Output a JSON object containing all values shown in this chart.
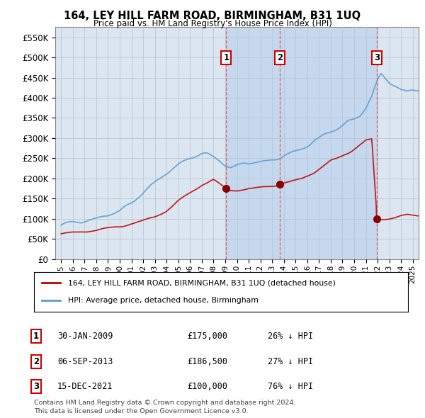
{
  "title": "164, LEY HILL FARM ROAD, BIRMINGHAM, B31 1UQ",
  "subtitle": "Price paid vs. HM Land Registry's House Price Index (HPI)",
  "ylim": [
    0,
    575000
  ],
  "yticks": [
    0,
    50000,
    100000,
    150000,
    200000,
    250000,
    300000,
    350000,
    400000,
    450000,
    500000,
    550000
  ],
  "ytick_labels": [
    "£0",
    "£50K",
    "£100K",
    "£150K",
    "£200K",
    "£250K",
    "£300K",
    "£350K",
    "£400K",
    "£450K",
    "£500K",
    "£550K"
  ],
  "sale_dates_num": [
    2009.08,
    2013.68,
    2021.96
  ],
  "sale_prices": [
    175000,
    186500,
    100000
  ],
  "sale_labels": [
    "1",
    "2",
    "3"
  ],
  "sale_date_str": [
    "30-JAN-2009",
    "06-SEP-2013",
    "15-DEC-2021"
  ],
  "sale_price_str": [
    "£175,000",
    "£186,500",
    "£100,000"
  ],
  "sale_hpi_str": [
    "26% ↓ HPI",
    "27% ↓ HPI",
    "76% ↓ HPI"
  ],
  "hpi_color": "#5b9bd5",
  "sale_color": "#c00000",
  "dashed_color": "#e06060",
  "background_color": "#ffffff",
  "plot_bg_color": "#dce6f0",
  "grid_color": "#b8c8d8",
  "span_color": "#c5d8ed",
  "legend_label_red": "164, LEY HILL FARM ROAD, BIRMINGHAM, B31 1UQ (detached house)",
  "legend_label_blue": "HPI: Average price, detached house, Birmingham",
  "footnote1": "Contains HM Land Registry data © Crown copyright and database right 2024.",
  "footnote2": "This data is licensed under the Open Government Licence v3.0.",
  "xmin": 1994.5,
  "xmax": 2025.5,
  "hpi_knots_x": [
    1995,
    1996,
    1997,
    1998,
    1999,
    2000,
    2001,
    2002,
    2003,
    2004,
    2005,
    2006,
    2007,
    2007.5,
    2008,
    2008.5,
    2009,
    2009.5,
    2010,
    2010.5,
    2011,
    2011.5,
    2012,
    2012.5,
    2013,
    2013.5,
    2014,
    2014.5,
    2015,
    2015.5,
    2016,
    2016.5,
    2017,
    2017.5,
    2018,
    2018.5,
    2019,
    2019.5,
    2020,
    2020.5,
    2021,
    2021.5,
    2022,
    2022.3,
    2022.5,
    2023,
    2023.5,
    2024,
    2024.5,
    2025
  ],
  "hpi_knots_y": [
    85000,
    90000,
    95000,
    100000,
    110000,
    120000,
    140000,
    165000,
    190000,
    215000,
    235000,
    255000,
    265000,
    262000,
    255000,
    248000,
    235000,
    228000,
    232000,
    238000,
    240000,
    242000,
    241000,
    243000,
    248000,
    252000,
    258000,
    263000,
    268000,
    275000,
    283000,
    292000,
    300000,
    310000,
    318000,
    325000,
    332000,
    342000,
    348000,
    358000,
    378000,
    405000,
    445000,
    460000,
    455000,
    440000,
    432000,
    420000,
    415000,
    420000
  ],
  "red_knots_x": [
    1995,
    1996,
    1997,
    1998,
    1999,
    2000,
    2001,
    2002,
    2003,
    2004,
    2005,
    2006,
    2007,
    2008,
    2009.08,
    2009.5,
    2010,
    2010.5,
    2011,
    2011.5,
    2012,
    2012.5,
    2013.68,
    2014,
    2014.5,
    2015,
    2015.5,
    2016,
    2016.5,
    2017,
    2017.5,
    2018,
    2018.5,
    2019,
    2019.5,
    2020,
    2020.5,
    2021,
    2021.5,
    2021.96,
    2022.3,
    2022.8,
    2023,
    2023.5,
    2024,
    2024.5,
    2025
  ],
  "red_knots_y": [
    63000,
    65000,
    68000,
    72000,
    76000,
    80000,
    88000,
    95000,
    105000,
    120000,
    145000,
    165000,
    185000,
    197000,
    175000,
    172000,
    173000,
    175000,
    177000,
    178000,
    180000,
    182000,
    186500,
    190000,
    192000,
    196000,
    200000,
    208000,
    215000,
    225000,
    235000,
    245000,
    250000,
    258000,
    265000,
    275000,
    285000,
    295000,
    298000,
    100000,
    100000,
    102000,
    103000,
    105000,
    108000,
    110000,
    108000
  ]
}
